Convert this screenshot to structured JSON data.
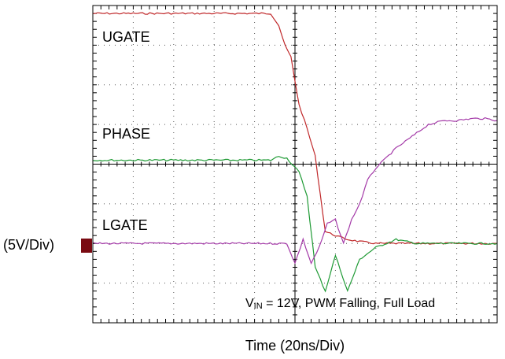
{
  "chart_data": {
    "type": "line",
    "xlabel": "Time  (20ns/Div)",
    "ylabel": "(5V/Div)",
    "grid": true,
    "divisions": {
      "x": 10,
      "y": 8
    },
    "x_units_per_div": "20ns",
    "y_units_per_div": "5V",
    "annotation": {
      "prefix": "V",
      "subscript": "IN",
      "rest": " = 12V, PWM Falling, Full Load"
    },
    "channel_marker_color": "#7a0a12",
    "series": [
      {
        "name": "UGATE",
        "color": "#c0282a",
        "x": [
          0,
          4.4,
          4.6,
          4.75,
          4.9,
          5.0,
          5.1,
          5.3,
          5.5,
          5.75,
          6.0,
          6.3,
          6.6,
          7.0,
          7.5,
          8.0,
          8.5,
          9.0,
          9.5,
          10.0
        ],
        "y": [
          7.8,
          7.8,
          7.5,
          7.0,
          6.7,
          6.1,
          5.5,
          4.9,
          4.2,
          2.3,
          2.2,
          2.1,
          2.05,
          2.0,
          2.0,
          2.0,
          2.0,
          2.0,
          2.0,
          2.0
        ]
      },
      {
        "name": "PHASE",
        "color": "#1e9a34",
        "x": [
          0,
          4.4,
          4.6,
          4.8,
          5.1,
          5.3,
          5.5,
          5.75,
          6.0,
          6.3,
          6.6,
          7.0,
          7.5,
          8.0,
          8.5,
          9.0,
          9.5,
          10.0
        ],
        "y": [
          4.1,
          4.1,
          4.2,
          4.15,
          3.8,
          3.2,
          1.4,
          0.8,
          1.7,
          0.8,
          1.6,
          1.9,
          2.1,
          2.0,
          2.0,
          2.0,
          2.0,
          2.0
        ]
      },
      {
        "name": "LGATE",
        "color": "#a43aa8",
        "x": [
          0,
          4.5,
          4.8,
          5.0,
          5.2,
          5.4,
          5.6,
          5.8,
          6.0,
          6.2,
          6.4,
          6.6,
          6.8,
          7.0,
          7.2,
          7.5,
          7.9,
          8.3,
          8.7,
          9.0,
          9.4,
          9.7,
          10.0
        ],
        "y": [
          2.0,
          2.0,
          2.0,
          1.5,
          2.1,
          1.5,
          1.9,
          2.5,
          2.6,
          2.0,
          2.6,
          3.0,
          3.6,
          3.9,
          4.1,
          4.4,
          4.7,
          5.0,
          5.1,
          5.1,
          5.15,
          5.15,
          5.1
        ]
      }
    ]
  }
}
